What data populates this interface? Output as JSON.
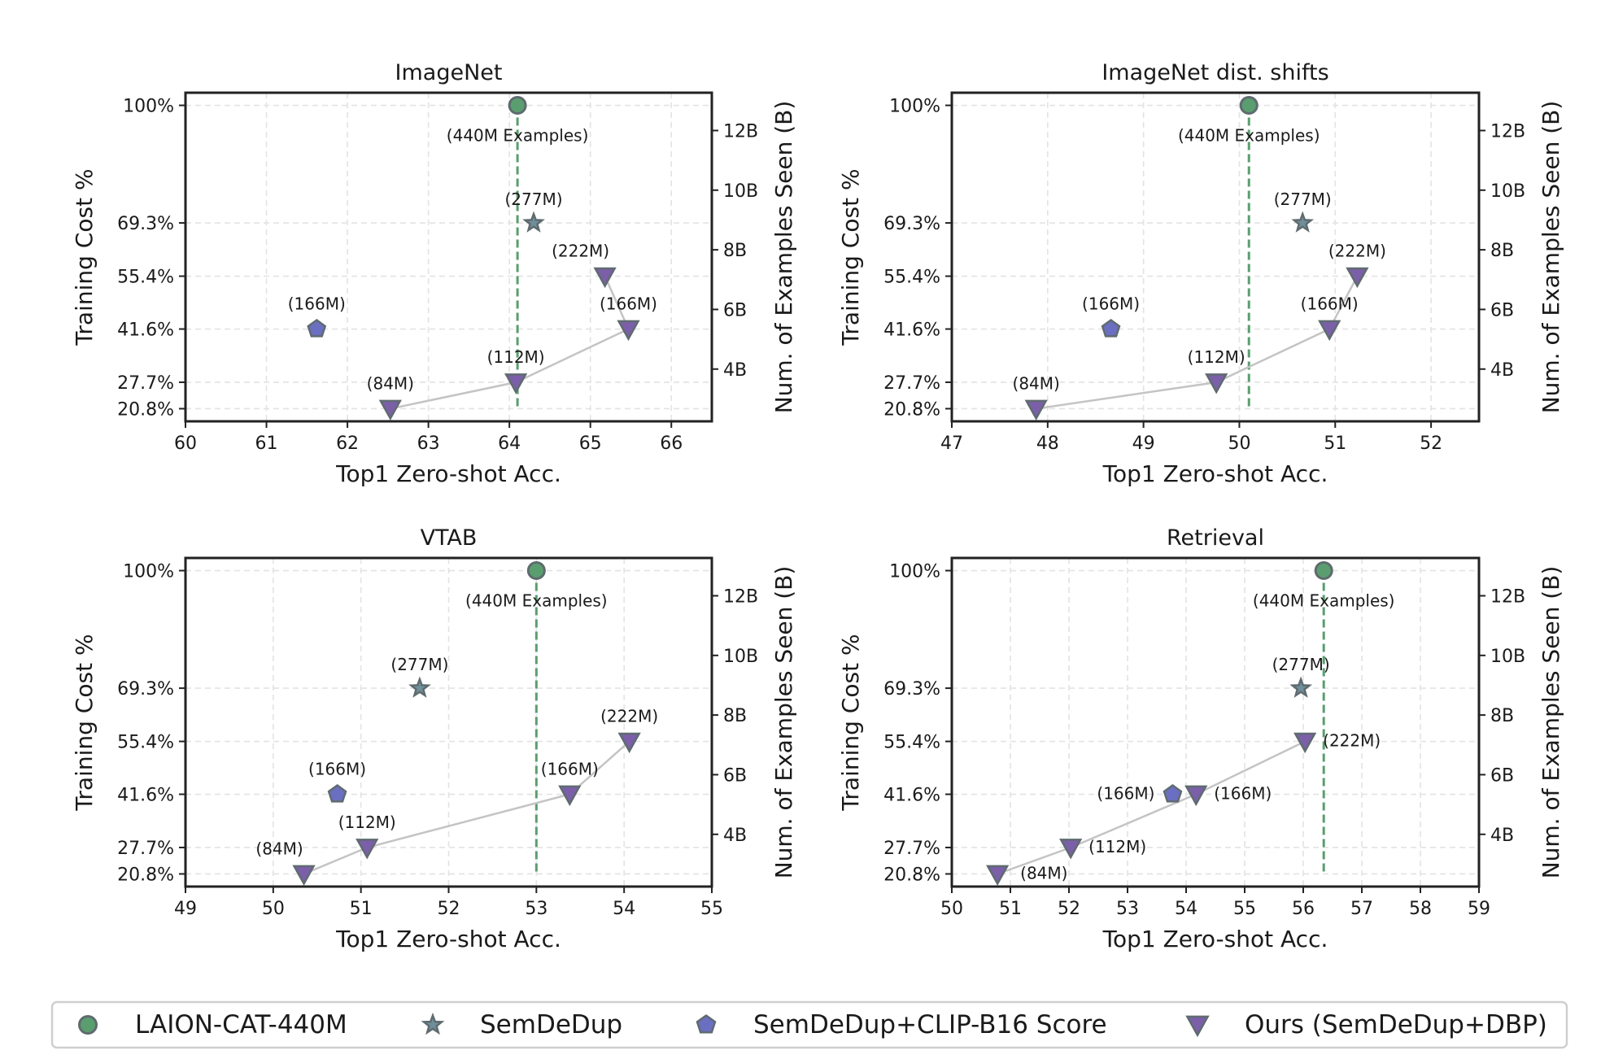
{
  "legend": {
    "position": "bottom",
    "items": [
      {
        "label": "LAION-CAT-440M",
        "marker": "circle",
        "fill": "#5a9e6f"
      },
      {
        "label": "SemDeDup",
        "marker": "star",
        "fill": "#6f8f9a"
      },
      {
        "label": "SemDeDup+CLIP-B16 Score",
        "marker": "pentagon",
        "fill": "#6b6fc2"
      },
      {
        "label": "Ours (SemDeDup+DBP)",
        "marker": "triangle-down",
        "fill": "#7b5fa8"
      }
    ]
  },
  "colors": {
    "marker_edge": "#5f6b6f",
    "baseline_line": "#5a9e6f",
    "ours_line": "#c4c4c4",
    "grid": "#e3e3e3",
    "axes": "#222222"
  },
  "chart_data": [
    {
      "type": "scatter",
      "title": "ImageNet",
      "xlabel": "Top1 Zero-shot Acc.",
      "ylabel": "Training Cost %",
      "ylabel_right": "Num. of Examples Seen (B)",
      "xlim": [
        60,
        66.5
      ],
      "xticks": [
        60,
        61,
        62,
        63,
        64,
        65,
        66
      ],
      "ylim": [
        17.5,
        103.3
      ],
      "yticks": [
        20.8,
        27.7,
        41.6,
        55.4,
        69.3,
        100
      ],
      "ytick_labels": [
        "20.8%",
        "27.7%",
        "41.6%",
        "55.4%",
        "69.3%",
        "100%"
      ],
      "right_ticks": [
        4,
        6,
        8,
        10,
        12
      ],
      "right_tick_labels": [
        "4B",
        "6B",
        "8B",
        "10B",
        "12B"
      ],
      "right_scale_b_per_percent": 0.12844,
      "grid": true,
      "baseline": {
        "x": 64.1,
        "y": 100,
        "label": "(440M Examples)"
      },
      "semdedup": {
        "x": 64.3,
        "y": 69.3,
        "label": "(277M)"
      },
      "clip": {
        "x": 61.62,
        "y": 41.6,
        "label": "(166M)"
      },
      "ours": [
        {
          "x": 62.53,
          "y": 20.8,
          "label": "(84M)"
        },
        {
          "x": 64.08,
          "y": 27.7,
          "label": "(112M)"
        },
        {
          "x": 65.47,
          "y": 41.6,
          "label": "(166M)"
        },
        {
          "x": 65.18,
          "y": 55.4,
          "label": "(222M)"
        }
      ]
    },
    {
      "type": "scatter",
      "title": "ImageNet dist. shifts",
      "xlabel": "Top1 Zero-shot Acc.",
      "ylabel": "Training Cost %",
      "ylabel_right": "Num. of Examples Seen (B)",
      "xlim": [
        47,
        52.5
      ],
      "xticks": [
        47,
        48,
        49,
        50,
        51,
        52
      ],
      "ylim": [
        17.5,
        103.3
      ],
      "yticks": [
        20.8,
        27.7,
        41.6,
        55.4,
        69.3,
        100
      ],
      "ytick_labels": [
        "20.8%",
        "27.7%",
        "41.6%",
        "55.4%",
        "69.3%",
        "100%"
      ],
      "right_ticks": [
        4,
        6,
        8,
        10,
        12
      ],
      "right_tick_labels": [
        "4B",
        "6B",
        "8B",
        "10B",
        "12B"
      ],
      "right_scale_b_per_percent": 0.12844,
      "grid": true,
      "baseline": {
        "x": 50.1,
        "y": 100,
        "label": "(440M Examples)"
      },
      "semdedup": {
        "x": 50.66,
        "y": 69.3,
        "label": "(277M)"
      },
      "clip": {
        "x": 48.66,
        "y": 41.6,
        "label": "(166M)"
      },
      "ours": [
        {
          "x": 47.88,
          "y": 20.8,
          "label": "(84M)"
        },
        {
          "x": 49.76,
          "y": 27.7,
          "label": "(112M)"
        },
        {
          "x": 50.94,
          "y": 41.6,
          "label": "(166M)"
        },
        {
          "x": 51.23,
          "y": 55.4,
          "label": "(222M)"
        }
      ]
    },
    {
      "type": "scatter",
      "title": "VTAB",
      "xlabel": "Top1 Zero-shot Acc.",
      "ylabel": "Training Cost %",
      "ylabel_right": "Num. of Examples Seen (B)",
      "xlim": [
        49,
        55
      ],
      "xticks": [
        49,
        50,
        51,
        52,
        53,
        54,
        55
      ],
      "ylim": [
        17.5,
        103.3
      ],
      "yticks": [
        20.8,
        27.7,
        41.6,
        55.4,
        69.3,
        100
      ],
      "ytick_labels": [
        "20.8%",
        "27.7%",
        "41.6%",
        "55.4%",
        "69.3%",
        "100%"
      ],
      "right_ticks": [
        4,
        6,
        8,
        10,
        12
      ],
      "right_tick_labels": [
        "4B",
        "6B",
        "8B",
        "10B",
        "12B"
      ],
      "right_scale_b_per_percent": 0.12844,
      "grid": true,
      "baseline": {
        "x": 53.0,
        "y": 100,
        "label": "(440M Examples)"
      },
      "semdedup": {
        "x": 51.67,
        "y": 69.3,
        "label": "(277M)"
      },
      "clip": {
        "x": 50.73,
        "y": 41.6,
        "label": "(166M)"
      },
      "ours": [
        {
          "x": 50.35,
          "y": 20.8,
          "label": "(84M)"
        },
        {
          "x": 51.07,
          "y": 27.7,
          "label": "(112M)"
        },
        {
          "x": 53.38,
          "y": 41.6,
          "label": "(166M)"
        },
        {
          "x": 54.06,
          "y": 55.4,
          "label": "(222M)"
        }
      ]
    },
    {
      "type": "scatter",
      "title": "Retrieval",
      "xlabel": "Top1 Zero-shot Acc.",
      "ylabel": "Training Cost %",
      "ylabel_right": "Num. of Examples Seen (B)",
      "xlim": [
        50,
        59
      ],
      "xticks": [
        50,
        51,
        52,
        53,
        54,
        55,
        56,
        57,
        58,
        59
      ],
      "ylim": [
        17.5,
        103.3
      ],
      "yticks": [
        20.8,
        27.7,
        41.6,
        55.4,
        69.3,
        100
      ],
      "ytick_labels": [
        "20.8%",
        "27.7%",
        "41.6%",
        "55.4%",
        "69.3%",
        "100%"
      ],
      "right_ticks": [
        4,
        6,
        8,
        10,
        12
      ],
      "right_tick_labels": [
        "4B",
        "6B",
        "8B",
        "10B",
        "12B"
      ],
      "right_scale_b_per_percent": 0.12844,
      "grid": true,
      "baseline": {
        "x": 56.35,
        "y": 100,
        "label": "(440M Examples)"
      },
      "semdedup": {
        "x": 55.96,
        "y": 69.3,
        "label": "(277M)"
      },
      "clip": {
        "x": 53.77,
        "y": 41.6,
        "label": "(166M)"
      },
      "ours": [
        {
          "x": 50.78,
          "y": 20.8,
          "label": "(84M)"
        },
        {
          "x": 52.03,
          "y": 27.7,
          "label": "(112M)"
        },
        {
          "x": 54.17,
          "y": 41.6,
          "label": "(166M)"
        },
        {
          "x": 56.03,
          "y": 55.4,
          "label": "(222M)"
        }
      ]
    }
  ]
}
